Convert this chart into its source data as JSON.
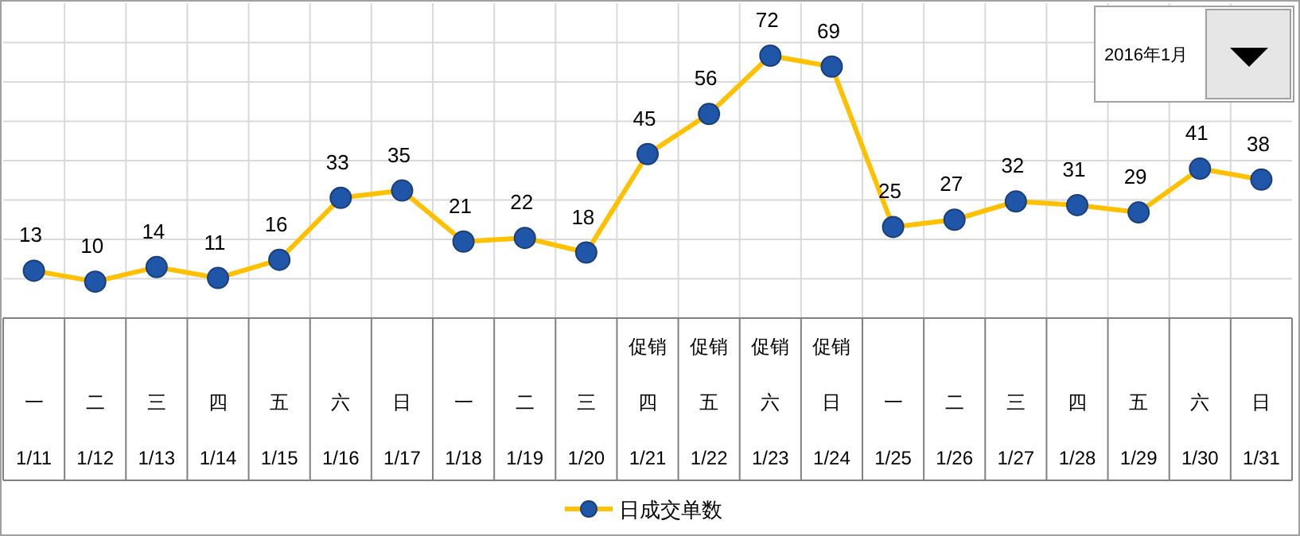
{
  "chart_data": {
    "type": "line",
    "categories": [
      "一\n1/11",
      "二\n1/12",
      "三\n1/13",
      "四\n1/14",
      "五\n1/15",
      "六\n1/16",
      "日\n1/17",
      "一\n1/18",
      "二\n1/19",
      "三\n1/20",
      "促销四\n1/21",
      "促销五\n1/22",
      "促销六\n1/23",
      "促销日\n1/24",
      "一\n1/25",
      "二\n1/26",
      "三\n1/27",
      "四\n1/28",
      "五\n1/29",
      "六\n1/30",
      "日\n1/31"
    ],
    "series": [
      {
        "name": "日成交单数",
        "color": "#ffc000",
        "values": [
          13,
          10,
          14,
          11,
          16,
          33,
          35,
          21,
          22,
          18,
          45,
          56,
          72,
          69,
          25,
          27,
          32,
          31,
          29,
          41,
          38
        ]
      }
    ],
    "marker": "circle",
    "line_style": "solid",
    "grid": true,
    "data_labels": true,
    "legend": "bottom",
    "annotations": [
      "2016年1月"
    ]
  }
}
